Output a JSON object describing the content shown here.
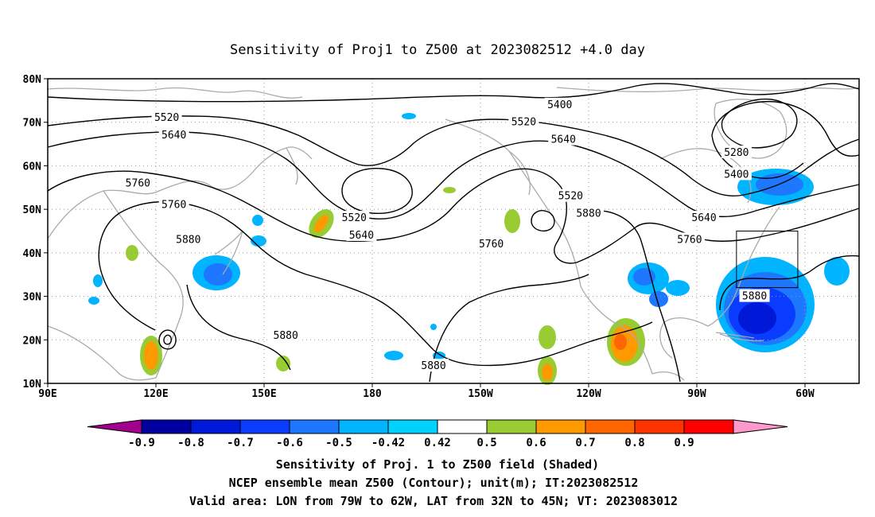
{
  "title": "Sensitivity of Proj1 to Z500 at 2023082512 +4.0 day",
  "map": {
    "lat_labels": [
      "80N",
      "70N",
      "60N",
      "50N",
      "40N",
      "30N",
      "20N",
      "10N"
    ],
    "lon_labels": [
      "90E",
      "120E",
      "150E",
      "180",
      "150W",
      "120W",
      "90W",
      "60W"
    ],
    "lat_range": [
      10,
      80
    ],
    "lon_range": [
      90,
      315
    ],
    "contour_labels": [
      {
        "text": "5400",
        "lon": 232,
        "lat": 74
      },
      {
        "text": "5520",
        "lon": 123,
        "lat": 71
      },
      {
        "text": "5520",
        "lon": 222,
        "lat": 70
      },
      {
        "text": "5640",
        "lon": 125,
        "lat": 67
      },
      {
        "text": "5640",
        "lon": 233,
        "lat": 66
      },
      {
        "text": "5280",
        "lon": 281,
        "lat": 63
      },
      {
        "text": "5400",
        "lon": 281,
        "lat": 58
      },
      {
        "text": "5760",
        "lon": 115,
        "lat": 56
      },
      {
        "text": "5520",
        "lon": 235,
        "lat": 53
      },
      {
        "text": "5760",
        "lon": 125,
        "lat": 51
      },
      {
        "text": "5520",
        "lon": 175,
        "lat": 48
      },
      {
        "text": "5880",
        "lon": 240,
        "lat": 49
      },
      {
        "text": "5640",
        "lon": 272,
        "lat": 48
      },
      {
        "text": "5640",
        "lon": 177,
        "lat": 44
      },
      {
        "text": "5760",
        "lon": 268,
        "lat": 43
      },
      {
        "text": "5880",
        "lon": 129,
        "lat": 43
      },
      {
        "text": "5760",
        "lon": 213,
        "lat": 42
      },
      {
        "text": "5880",
        "lon": 286,
        "lat": 30
      },
      {
        "text": "5880",
        "lon": 156,
        "lat": 21
      },
      {
        "text": "5880",
        "lon": 197,
        "lat": 14
      }
    ],
    "valid_box": {
      "lon_min": 281,
      "lon_max": 298,
      "lat_min": 32,
      "lat_max": 45
    }
  },
  "colorbar": {
    "labels": [
      "-0.9",
      "-0.8",
      "-0.7",
      "-0.6",
      "-0.5",
      "-0.42",
      "0.42",
      "0.5",
      "0.6",
      "0.7",
      "0.8",
      "0.9"
    ],
    "colors": [
      "#a0008c",
      "#0000a0",
      "#0018d8",
      "#0a3cff",
      "#1e78ff",
      "#00b4ff",
      "#00d2ff",
      "#ffffff",
      "#99cc33",
      "#ff9900",
      "#ff6600",
      "#ff3300",
      "#ff0000",
      "#ff99cc"
    ]
  },
  "caption": {
    "line1": "Sensitivity of Proj. 1 to Z500 field (Shaded)",
    "line2": "NCEP ensemble mean Z500 (Contour); unit(m); IT:2023082512",
    "line3": "Valid area: LON from 79W to 62W, LAT from 32N to 45N; VT: 2023083012"
  },
  "colors": {
    "contour": "#000000",
    "coast": "#aaaaaa",
    "grid": "#999999"
  }
}
